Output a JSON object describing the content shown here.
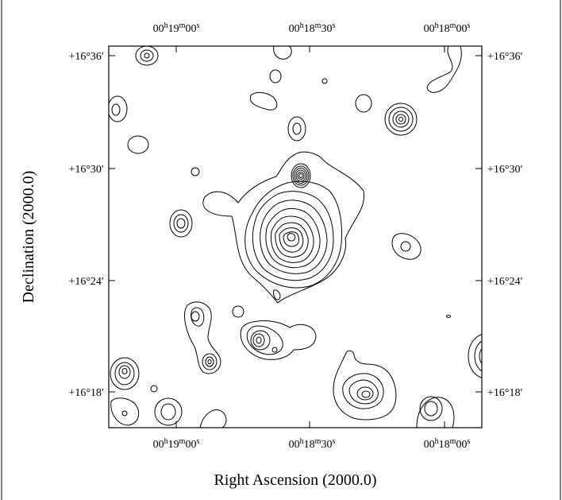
{
  "figure": {
    "xlabel": "Right Ascension (2000.0)",
    "ylabel": "Declination (2000.0)",
    "ra_ticks": [
      {
        "h": "00",
        "m": "19",
        "s": "00"
      },
      {
        "h": "00",
        "m": "18",
        "s": "30"
      },
      {
        "h": "00",
        "m": "18",
        "s": "00"
      }
    ],
    "dec_ticks": [
      "+16°36′",
      "+16°30′",
      "+16°24′",
      "+16°18′"
    ]
  }
}
